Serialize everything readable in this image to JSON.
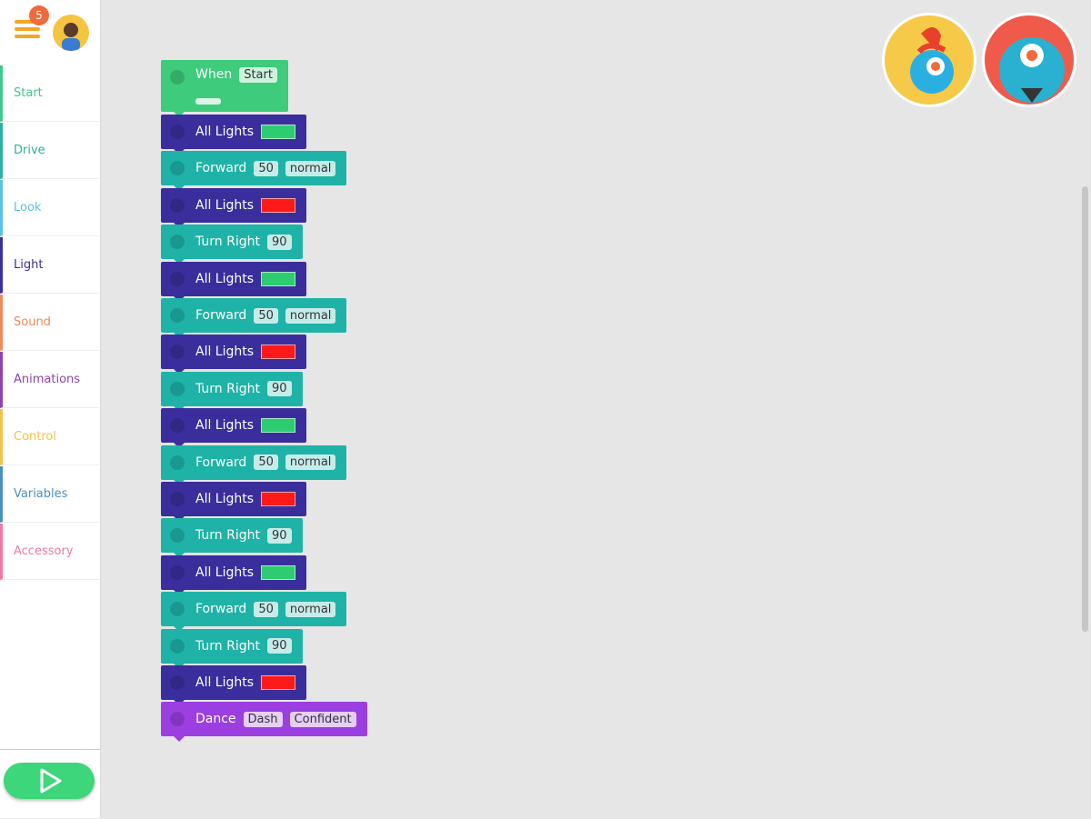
{
  "header": {
    "badge": "5"
  },
  "categories": [
    "Start",
    "Drive",
    "Look",
    "Light",
    "Sound",
    "Animations",
    "Control",
    "Variables",
    "Accessory"
  ],
  "blocks": [
    {
      "label": "When",
      "color": "#3ecb7c",
      "params": [
        "Start"
      ]
    },
    {
      "label": "All Lights",
      "color": "#3a2e9c",
      "light": "#2ecc71",
      "params": []
    },
    {
      "label": "Forward",
      "color": "#1eb3a6",
      "params": [
        "50",
        "normal"
      ]
    },
    {
      "label": "All Lights",
      "color": "#3a2e9c",
      "light": "#ff1a1a",
      "params": []
    },
    {
      "label": "Turn Right",
      "color": "#1eb3a6",
      "params": [
        "90"
      ]
    },
    {
      "label": "All Lights",
      "color": "#3a2e9c",
      "light": "#2ecc71",
      "params": []
    },
    {
      "label": "Forward",
      "color": "#1eb3a6",
      "params": [
        "50",
        "normal"
      ]
    },
    {
      "label": "All Lights",
      "color": "#3a2e9c",
      "light": "#ff1a1a",
      "params": []
    },
    {
      "label": "Turn Right",
      "color": "#1eb3a6",
      "params": [
        "90"
      ]
    },
    {
      "label": "All Lights",
      "color": "#3a2e9c",
      "light": "#2ecc71",
      "params": []
    },
    {
      "label": "Forward",
      "color": "#1eb3a6",
      "params": [
        "50",
        "normal"
      ]
    },
    {
      "label": "All Lights",
      "color": "#3a2e9c",
      "light": "#ff1a1a",
      "params": []
    },
    {
      "label": "Turn Right",
      "color": "#1eb3a6",
      "params": [
        "90"
      ]
    },
    {
      "label": "All Lights",
      "color": "#3a2e9c",
      "light": "#2ecc71",
      "params": []
    },
    {
      "label": "Forward",
      "color": "#1eb3a6",
      "params": [
        "50",
        "normal"
      ]
    },
    {
      "label": "Turn Right",
      "color": "#1eb3a6",
      "params": [
        "90"
      ]
    },
    {
      "label": "All Lights",
      "color": "#3a2e9c",
      "light": "#ff1a1a",
      "params": []
    },
    {
      "label": "Dance",
      "color": "#9b3fe0",
      "params": [
        "Dash",
        "Confident"
      ]
    }
  ]
}
